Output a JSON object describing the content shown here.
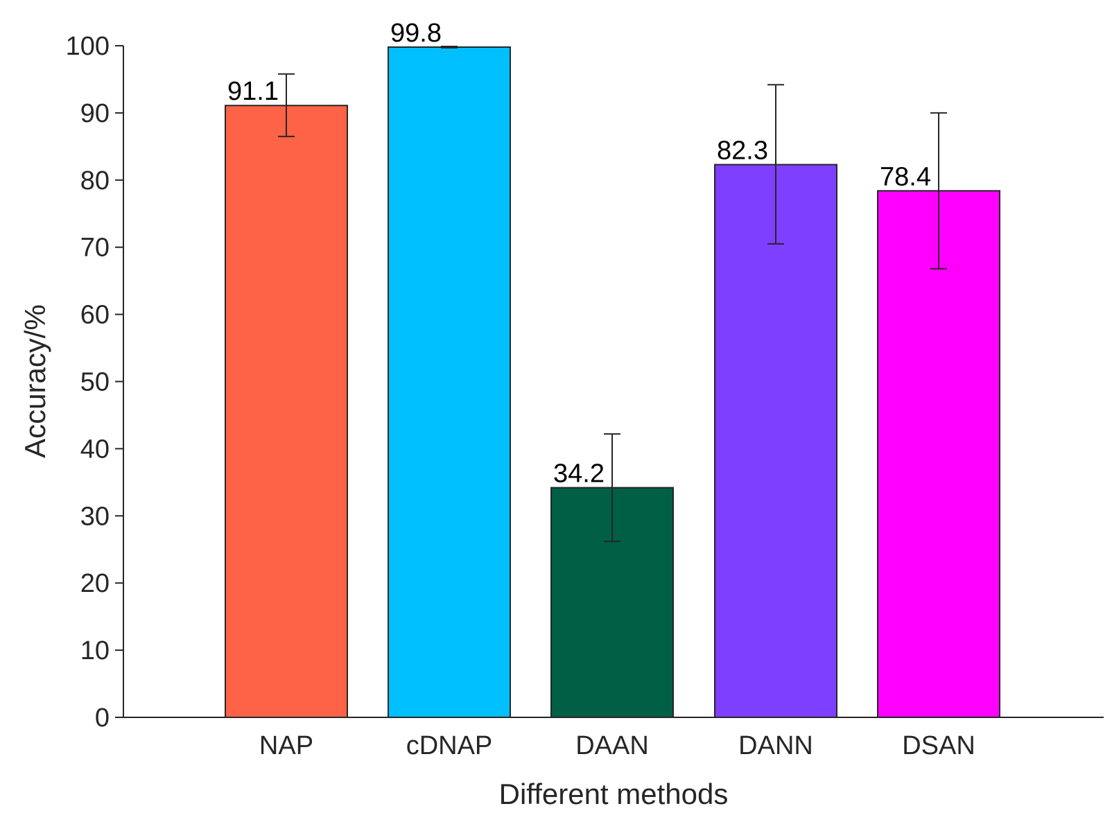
{
  "chart_data": {
    "type": "bar",
    "title": "",
    "xlabel": "Different methods",
    "ylabel": "Accuracy/%",
    "ylim": [
      0,
      100
    ],
    "yticks": [
      0,
      10,
      20,
      30,
      40,
      50,
      60,
      70,
      80,
      90,
      100
    ],
    "grid": false,
    "categories": [
      "NAP",
      "cDNAP",
      "DAAN",
      "DANN",
      "DSAN"
    ],
    "values": [
      91.1,
      99.8,
      34.2,
      82.3,
      78.4
    ],
    "value_labels": [
      "91.1",
      "99.8",
      "34.2",
      "82.3",
      "78.4"
    ],
    "error_low": [
      86.5,
      99.7,
      26.2,
      70.5,
      66.8
    ],
    "error_high": [
      95.8,
      99.9,
      42.2,
      94.2,
      90.0
    ],
    "colors": [
      "#ff6347",
      "#00bfff",
      "#005f44",
      "#7f3fff",
      "#ff00ff"
    ],
    "axis_color": "#262626",
    "bar_edge_color": "#262626"
  }
}
